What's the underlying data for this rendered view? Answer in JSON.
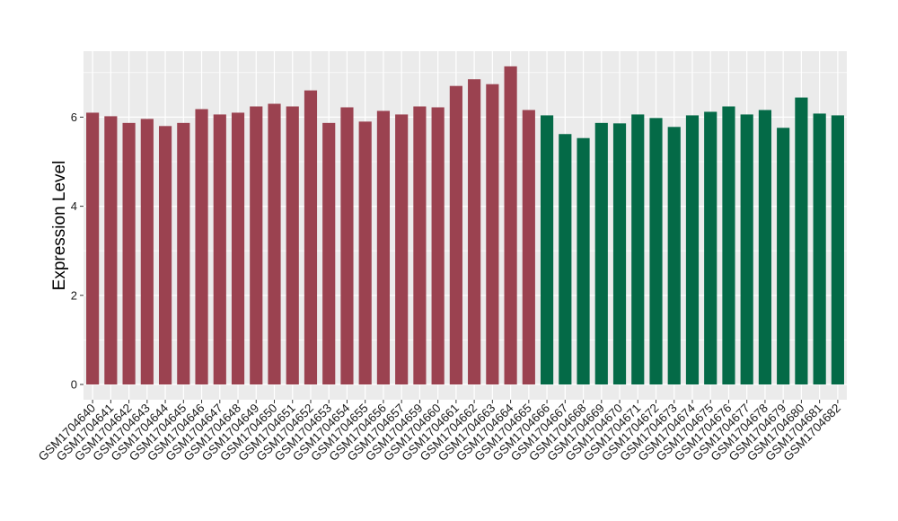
{
  "chart_data": {
    "type": "bar",
    "title": "",
    "xlabel": "",
    "ylabel": "Expression Level",
    "ylim": [
      0,
      7.3
    ],
    "yticks": [
      0,
      2,
      4,
      6
    ],
    "grid": true,
    "background_color": "#ebebeb",
    "grid_color": "#ffffff",
    "colors": {
      "group_1": "#9b4250",
      "group_2": "#046a47"
    },
    "categories": [
      "GSM1704640",
      "GSM1704641",
      "GSM1704642",
      "GSM1704643",
      "GSM1704644",
      "GSM1704645",
      "GSM1704646",
      "GSM1704647",
      "GSM1704648",
      "GSM1704649",
      "GSM1704650",
      "GSM1704651",
      "GSM1704652",
      "GSM1704653",
      "GSM1704654",
      "GSM1704655",
      "GSM1704656",
      "GSM1704657",
      "GSM1704659",
      "GSM1704660",
      "GSM1704661",
      "GSM1704662",
      "GSM1704663",
      "GSM1704664",
      "GSM1704665",
      "GSM1704666",
      "GSM1704667",
      "GSM1704668",
      "GSM1704669",
      "GSM1704670",
      "GSM1704671",
      "GSM1704672",
      "GSM1704673",
      "GSM1704674",
      "GSM1704675",
      "GSM1704676",
      "GSM1704677",
      "GSM1704678",
      "GSM1704679",
      "GSM1704680",
      "GSM1704681",
      "GSM1704682"
    ],
    "values": [
      6.1,
      6.02,
      5.87,
      5.96,
      5.8,
      5.87,
      6.18,
      6.06,
      6.1,
      6.24,
      6.3,
      6.24,
      6.6,
      5.87,
      6.22,
      5.9,
      6.14,
      6.06,
      6.24,
      6.22,
      6.7,
      6.85,
      6.74,
      7.14,
      6.16,
      6.04,
      5.62,
      5.53,
      5.87,
      5.86,
      6.06,
      5.98,
      5.78,
      6.04,
      6.12,
      6.24,
      6.06,
      6.16,
      5.76,
      6.44,
      6.08,
      6.04
    ],
    "groups": [
      1,
      1,
      1,
      1,
      1,
      1,
      1,
      1,
      1,
      1,
      1,
      1,
      1,
      1,
      1,
      1,
      1,
      1,
      1,
      1,
      1,
      1,
      1,
      1,
      1,
      2,
      2,
      2,
      2,
      2,
      2,
      2,
      2,
      2,
      2,
      2,
      2,
      2,
      2,
      2,
      2,
      2
    ]
  }
}
